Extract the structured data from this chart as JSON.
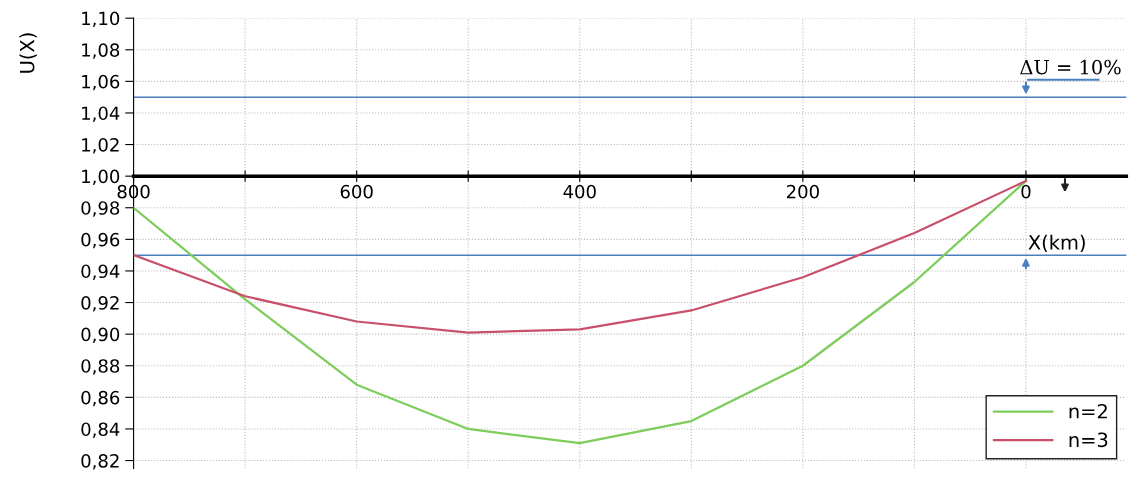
{
  "chart_data": {
    "type": "line",
    "xlabel": "X(km)",
    "ylabel": "U(X)",
    "x": [
      800,
      700,
      600,
      500,
      400,
      300,
      200,
      100,
      0
    ],
    "series": [
      {
        "name": "n=2",
        "color": "#7ccd5a",
        "values": [
          0.98,
          0.922,
          0.868,
          0.84,
          0.831,
          0.845,
          0.88,
          0.933,
          0.997
        ]
      },
      {
        "name": "n=3",
        "color": "#c8506a",
        "values": [
          0.95,
          0.924,
          0.908,
          0.901,
          0.903,
          0.915,
          0.936,
          0.964,
          0.997
        ]
      }
    ],
    "xlim": [
      800,
      -90
    ],
    "ylim": [
      0.815,
      1.1
    ],
    "xticks": [
      800,
      {
        "value": 700,
        "label": null
      },
      600,
      {
        "value": 500,
        "label": null
      },
      400,
      {
        "value": 300,
        "label": null
      },
      200,
      {
        "value": 100,
        "label": null
      },
      0
    ],
    "yticks": [
      {
        "value": 0.82,
        "label": "0,82"
      },
      {
        "value": 0.84,
        "label": "0,84"
      },
      {
        "value": 0.86,
        "label": "0,86"
      },
      {
        "value": 0.88,
        "label": "0,88"
      },
      {
        "value": 0.9,
        "label": "0,90"
      },
      {
        "value": 0.92,
        "label": "0,92"
      },
      {
        "value": 0.94,
        "label": "0,94"
      },
      {
        "value": 0.96,
        "label": "0,96"
      },
      {
        "value": 0.98,
        "label": "0,98"
      },
      {
        "value": 1.0,
        "label": "1,00"
      },
      {
        "value": 1.02,
        "label": "1,02"
      },
      {
        "value": 1.04,
        "label": "1,04"
      },
      {
        "value": 1.06,
        "label": "1,06"
      },
      {
        "value": 1.08,
        "label": "1,08"
      },
      {
        "value": 1.1,
        "label": "1,10"
      }
    ],
    "ref_lines": [
      {
        "axis": "y",
        "value": 1.05,
        "color": "#4a7fc0"
      },
      {
        "axis": "y",
        "value": 0.95,
        "color": "#4a7fc0"
      }
    ],
    "annotations": [
      "ΔU = 10%"
    ],
    "grid": true,
    "legend": "bottom right",
    "marker": "none",
    "line_style": "solid"
  }
}
